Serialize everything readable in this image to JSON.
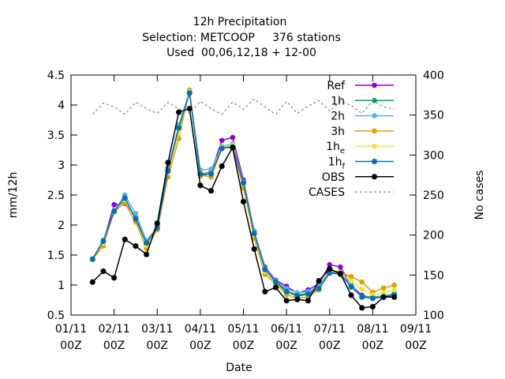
{
  "chart_data": {
    "type": "line",
    "title_lines": [
      "12h Precipitation",
      "Selection: METCOOP     376 stations",
      "Used  00,06,12,18 + 12-00"
    ],
    "xlabel": "Date",
    "ylabel": "mm/12h",
    "y2label": "No cases",
    "xlim": [
      0,
      8
    ],
    "ylim": [
      0.5,
      4.5
    ],
    "y2lim": [
      100,
      400
    ],
    "yticks": [
      "0.5",
      "1",
      "1.5",
      "2",
      "2.5",
      "3",
      "3.5",
      "4",
      "4.5"
    ],
    "y2ticks": [
      "100",
      "150",
      "200",
      "250",
      "300",
      "350",
      "400"
    ],
    "xticks": [
      {
        "top": "01/11",
        "bottom": "00Z"
      },
      {
        "top": "02/11",
        "bottom": "00Z"
      },
      {
        "top": "03/11",
        "bottom": "00Z"
      },
      {
        "top": "04/11",
        "bottom": "00Z"
      },
      {
        "top": "05/11",
        "bottom": "00Z"
      },
      {
        "top": "06/11",
        "bottom": "00Z"
      },
      {
        "top": "07/11",
        "bottom": "00Z"
      },
      {
        "top": "08/11",
        "bottom": "00Z"
      },
      {
        "top": "09/11",
        "bottom": "00Z"
      }
    ],
    "x": [
      0.5,
      0.75,
      1.0,
      1.25,
      1.5,
      1.75,
      2.0,
      2.25,
      2.5,
      2.75,
      3.0,
      3.25,
      3.5,
      3.75,
      4.0,
      4.25,
      4.5,
      4.75,
      5.0,
      5.25,
      5.5,
      5.75,
      6.0,
      6.25,
      6.5,
      6.75,
      7.0,
      7.25,
      7.5
    ],
    "legend_position": "top-right",
    "series": [
      {
        "name": "Ref",
        "sub": "",
        "color": "#9400d3",
        "marker": "dot",
        "axis": "y",
        "values": [
          1.43,
          1.72,
          2.34,
          2.36,
          2.13,
          1.68,
          2.0,
          2.95,
          3.6,
          4.23,
          2.86,
          2.88,
          3.41,
          3.46,
          2.75,
          1.89,
          1.3,
          1.08,
          0.98,
          0.86,
          0.92,
          1.02,
          1.34,
          1.3,
          1.0,
          0.83,
          0.78,
          0.8,
          0.86
        ]
      },
      {
        "name": "1h",
        "sub": "",
        "color": "#009e73",
        "marker": "dot",
        "axis": "y",
        "values": [
          1.43,
          1.73,
          2.22,
          2.45,
          2.1,
          1.69,
          1.95,
          2.9,
          3.63,
          4.2,
          2.82,
          2.86,
          3.28,
          3.31,
          2.7,
          1.86,
          1.27,
          1.06,
          0.9,
          0.83,
          0.86,
          0.95,
          1.22,
          1.2,
          0.99,
          0.81,
          0.8,
          0.82,
          0.85
        ]
      },
      {
        "name": "2h",
        "sub": "",
        "color": "#56b4e9",
        "marker": "dot",
        "axis": "y",
        "values": [
          1.44,
          1.75,
          2.24,
          2.5,
          2.19,
          1.74,
          1.97,
          2.92,
          3.67,
          4.22,
          2.92,
          2.93,
          3.31,
          3.35,
          2.72,
          1.9,
          1.28,
          1.07,
          0.94,
          0.87,
          0.89,
          0.98,
          1.24,
          1.22,
          1.0,
          0.8,
          0.79,
          0.81,
          0.84
        ]
      },
      {
        "name": "3h",
        "sub": "",
        "color": "#e69f00",
        "marker": "dot",
        "axis": "y",
        "values": [
          1.43,
          1.65,
          2.22,
          2.37,
          2.05,
          1.61,
          1.92,
          2.8,
          3.44,
          4.25,
          2.83,
          2.8,
          3.27,
          3.31,
          2.62,
          1.78,
          1.18,
          1.02,
          0.84,
          0.78,
          0.8,
          0.92,
          1.23,
          1.21,
          1.14,
          1.05,
          0.88,
          0.95,
          1.0
        ]
      },
      {
        "name": "1h",
        "sub": "e",
        "color": "#f0e442",
        "marker": "dot",
        "axis": "y",
        "values": [
          1.44,
          1.7,
          2.24,
          2.42,
          2.09,
          1.66,
          1.95,
          2.88,
          3.55,
          4.22,
          2.87,
          2.86,
          3.3,
          3.33,
          2.69,
          1.84,
          1.23,
          1.04,
          0.88,
          0.81,
          0.84,
          0.94,
          1.2,
          1.18,
          1.07,
          0.93,
          0.83,
          0.87,
          0.92
        ]
      },
      {
        "name": "1h",
        "sub": "f",
        "color": "#0072b2",
        "marker": "star",
        "axis": "y",
        "values": [
          1.43,
          1.73,
          2.23,
          2.45,
          2.1,
          1.7,
          1.95,
          2.9,
          3.62,
          4.2,
          2.85,
          2.85,
          3.28,
          3.3,
          2.7,
          1.86,
          1.26,
          1.05,
          0.89,
          0.82,
          0.85,
          0.94,
          1.2,
          1.18,
          0.97,
          0.8,
          0.78,
          0.8,
          0.83
        ]
      },
      {
        "name": "OBS",
        "sub": "",
        "color": "#000000",
        "marker": "star",
        "axis": "y",
        "values": [
          1.05,
          1.23,
          1.12,
          1.76,
          1.65,
          1.51,
          2.03,
          3.04,
          3.88,
          3.94,
          2.66,
          2.57,
          2.98,
          3.29,
          2.39,
          1.6,
          0.89,
          0.96,
          0.74,
          0.76,
          0.74,
          1.07,
          1.27,
          1.19,
          0.83,
          0.62,
          0.64,
          0.8,
          0.8
        ]
      },
      {
        "name": "CASES",
        "sub": "",
        "color": "#888888",
        "marker": "none",
        "dashed": true,
        "axis": "y2",
        "values": [
          351,
          365,
          360,
          351,
          366,
          358,
          352,
          366,
          358,
          352,
          367,
          358,
          351,
          366,
          357,
          370,
          360,
          351,
          367,
          352,
          361,
          368,
          355,
          367,
          362,
          352,
          368,
          360,
          358
        ]
      }
    ]
  }
}
